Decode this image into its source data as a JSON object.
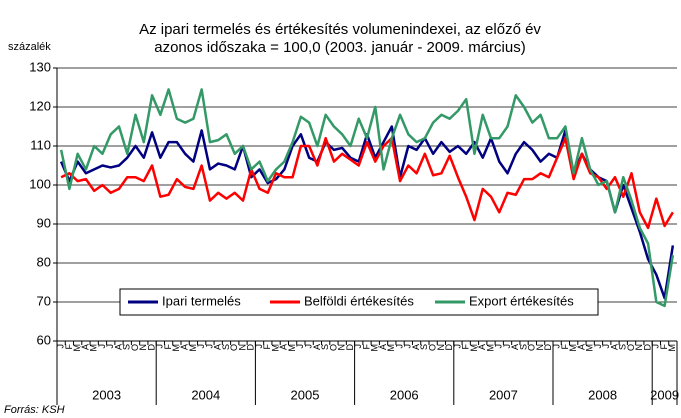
{
  "chart_data": {
    "type": "line",
    "title": [
      "Az ipari termelés és értékesítés volumenindexei, az előző év",
      "azonos időszaka = 100,0 (2003. január - 2009. március)"
    ],
    "y_label": "százalék",
    "source": "Forrás: KSH",
    "categories": [
      "J",
      "F",
      "M",
      "Á",
      "M",
      "J",
      "J",
      "A",
      "S",
      "O",
      "N",
      "D",
      "J",
      "F",
      "M",
      "Á",
      "M",
      "J",
      "J",
      "A",
      "S",
      "O",
      "N",
      "D",
      "J",
      "F",
      "M",
      "Á",
      "M",
      "J",
      "J",
      "A",
      "S",
      "O",
      "N",
      "D",
      "J",
      "F",
      "M",
      "Á",
      "M",
      "J",
      "J",
      "A",
      "S",
      "O",
      "N",
      "D",
      "J",
      "F",
      "M",
      "Á",
      "M",
      "J",
      "J",
      "A",
      "S",
      "O",
      "N",
      "D",
      "J",
      "F",
      "M",
      "Á",
      "M",
      "J",
      "J",
      "A",
      "S",
      "O",
      "N",
      "D",
      "J",
      "F",
      "M"
    ],
    "years": [
      "2003",
      "2004",
      "2005",
      "2006",
      "2007",
      "2008",
      "2009"
    ],
    "series": [
      {
        "name": "Ipari termelés",
        "color": "#000080",
        "values": [
          106,
          101,
          106,
          103,
          104,
          105,
          104.5,
          105,
          107,
          110,
          107,
          113.5,
          107,
          111,
          111,
          108,
          106,
          114,
          104,
          105.5,
          105,
          104,
          110,
          102,
          104,
          100.5,
          101.5,
          104,
          110,
          113,
          107,
          106,
          111,
          109,
          109.5,
          107,
          106,
          113,
          107,
          111,
          115,
          102,
          110,
          109,
          112,
          108,
          111,
          108.5,
          110,
          108,
          111,
          107,
          112,
          106,
          103,
          108,
          111,
          109,
          106,
          108,
          107,
          114,
          103,
          108,
          104,
          102,
          101,
          93,
          100,
          94,
          88,
          81,
          77,
          71,
          84.5
        ]
      },
      {
        "name": "Belföldi értékesítés",
        "color": "#ff0000",
        "values": [
          102,
          103,
          101,
          101.5,
          98.5,
          100,
          98,
          99,
          102,
          102,
          101,
          105,
          97,
          97.5,
          101.5,
          99.5,
          99,
          105,
          96,
          98,
          96.5,
          98,
          96,
          104,
          99,
          98,
          103,
          102,
          102,
          110,
          110,
          105,
          112,
          106,
          108,
          106.5,
          105,
          111,
          106,
          110,
          112,
          101,
          105,
          103,
          108,
          102.5,
          103,
          107.5,
          102,
          97,
          91,
          99,
          97,
          93,
          98,
          97.5,
          101.5,
          101.5,
          103,
          102,
          107,
          112,
          101.5,
          108,
          103,
          102,
          99,
          102,
          97,
          103,
          93,
          89,
          96.5,
          89.5,
          93
        ]
      },
      {
        "name": "Export értékesítés",
        "color": "#339966",
        "values": [
          109,
          99,
          108,
          104,
          110,
          108,
          113,
          115,
          108,
          118,
          111,
          123,
          118,
          124.5,
          117,
          116,
          117,
          124.5,
          111,
          111.5,
          113,
          108,
          110,
          104,
          106,
          101,
          104,
          106,
          111,
          117.5,
          116,
          110,
          118,
          115,
          113,
          110,
          117,
          112,
          120,
          104,
          112,
          118,
          113,
          111,
          112,
          116,
          118,
          117,
          119,
          122,
          108,
          118,
          112,
          112,
          115,
          123,
          120,
          116,
          118,
          112,
          112,
          115,
          103,
          112,
          104,
          100,
          101,
          93,
          102,
          96,
          89,
          85,
          70,
          69,
          82
        ]
      }
    ],
    "ylim": [
      60,
      130
    ],
    "yticks": [
      60,
      70,
      80,
      90,
      100,
      110,
      120,
      130
    ],
    "grid": true
  }
}
